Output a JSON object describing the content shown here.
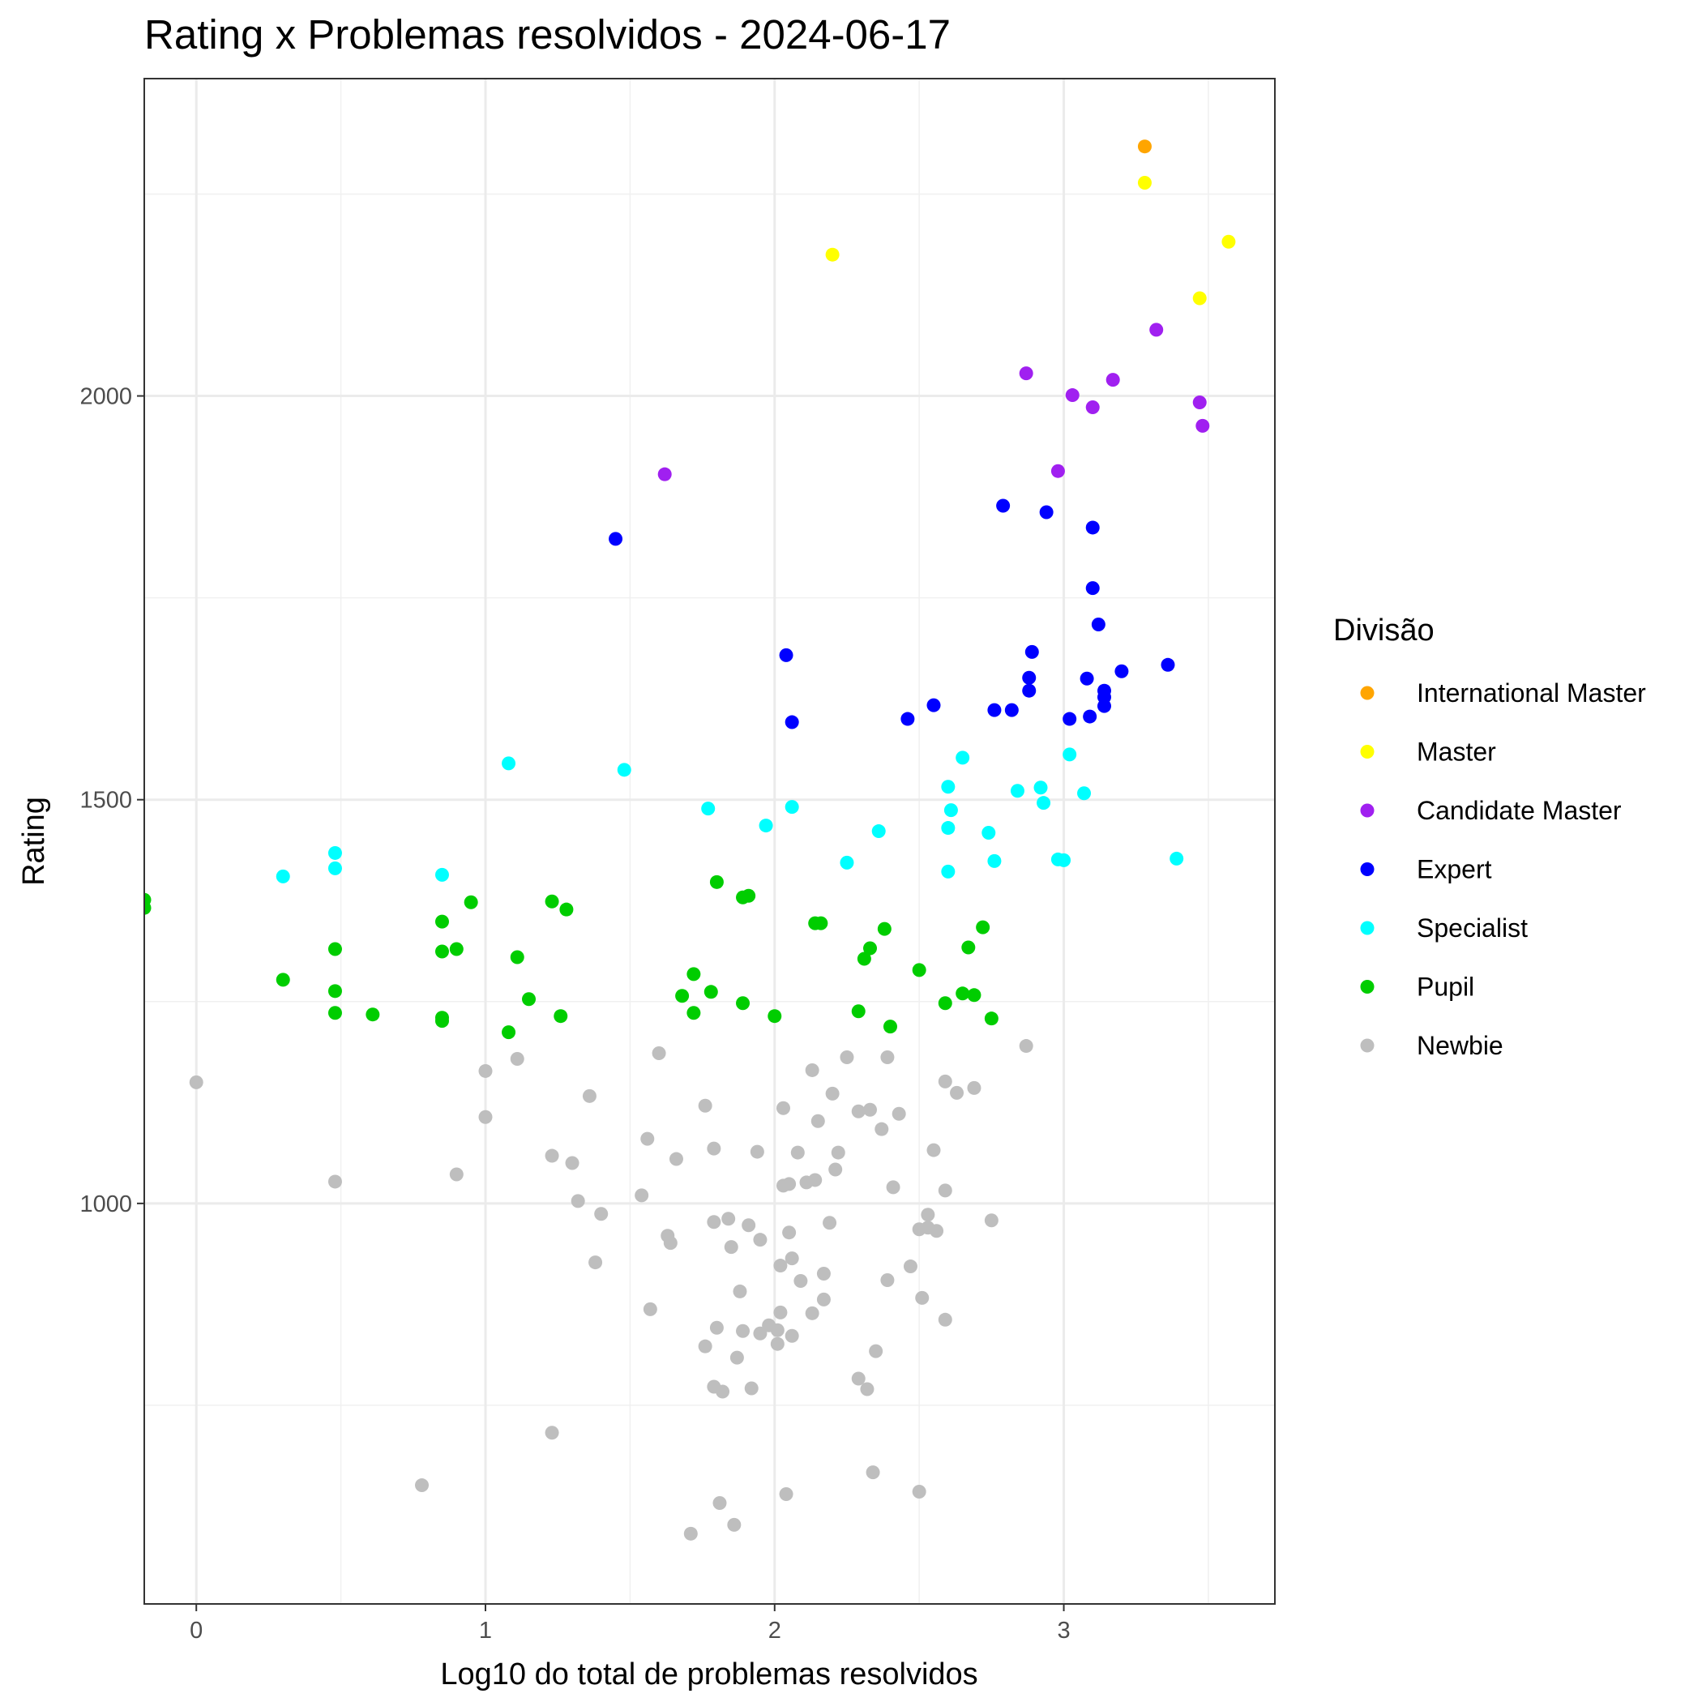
{
  "chart_data": {
    "type": "scatter",
    "title": "Rating x Problemas resolvidos - 2024-06-17",
    "xlabel": "Log10 do total de problemas resolvidos",
    "ylabel": "Rating",
    "xlim": [
      -0.18,
      3.73
    ],
    "ylim": [
      504,
      2393
    ],
    "x_ticks": [
      0,
      1,
      2,
      3
    ],
    "x_tick_labels": [
      "0",
      "1",
      "2",
      "3"
    ],
    "y_ticks": [
      1000,
      1500,
      2000
    ],
    "y_tick_labels": [
      "1000",
      "1500",
      "2000"
    ],
    "grid": true,
    "legend_title": "Divisão",
    "legend_position": "right",
    "series": [
      {
        "name": "International Master",
        "color": "#FFA500",
        "points": [
          [
            3.28,
            2309
          ]
        ]
      },
      {
        "name": "Master",
        "color": "#FFFF00",
        "points": [
          [
            3.28,
            2264
          ],
          [
            2.2,
            2175
          ],
          [
            3.57,
            2191
          ],
          [
            3.47,
            2121
          ]
        ]
      },
      {
        "name": "Candidate Master",
        "color": "#A020F0",
        "points": [
          [
            3.32,
            2082
          ],
          [
            2.87,
            2028
          ],
          [
            3.17,
            2020
          ],
          [
            3.03,
            2001
          ],
          [
            3.1,
            1986
          ],
          [
            3.47,
            1992
          ],
          [
            3.48,
            1963
          ],
          [
            1.62,
            1903
          ],
          [
            2.98,
            1907
          ]
        ]
      },
      {
        "name": "Expert",
        "color": "#0000FF",
        "points": [
          [
            1.45,
            1823
          ],
          [
            2.79,
            1864
          ],
          [
            2.94,
            1856
          ],
          [
            3.1,
            1837
          ],
          [
            3.1,
            1762
          ],
          [
            3.12,
            1717
          ],
          [
            2.89,
            1683
          ],
          [
            2.04,
            1679
          ],
          [
            3.36,
            1667
          ],
          [
            3.2,
            1659
          ],
          [
            2.88,
            1651
          ],
          [
            3.08,
            1650
          ],
          [
            2.88,
            1635
          ],
          [
            3.14,
            1635
          ],
          [
            3.14,
            1627
          ],
          [
            2.55,
            1617
          ],
          [
            2.76,
            1611
          ],
          [
            2.82,
            1611
          ],
          [
            3.14,
            1616
          ],
          [
            2.46,
            1600
          ],
          [
            3.02,
            1600
          ],
          [
            3.09,
            1603
          ],
          [
            2.06,
            1596
          ]
        ]
      },
      {
        "name": "Specialist",
        "color": "#00FFFF",
        "points": [
          [
            1.08,
            1545
          ],
          [
            1.48,
            1537
          ],
          [
            2.65,
            1552
          ],
          [
            3.02,
            1556
          ],
          [
            2.6,
            1516
          ],
          [
            2.84,
            1511
          ],
          [
            2.92,
            1515
          ],
          [
            3.07,
            1508
          ],
          [
            2.93,
            1496
          ],
          [
            1.77,
            1489
          ],
          [
            2.06,
            1491
          ],
          [
            2.61,
            1487
          ],
          [
            1.97,
            1468
          ],
          [
            2.6,
            1465
          ],
          [
            2.36,
            1461
          ],
          [
            2.74,
            1459
          ],
          [
            0.48,
            1434
          ],
          [
            0.48,
            1415
          ],
          [
            0.3,
            1405
          ],
          [
            0.85,
            1407
          ],
          [
            2.25,
            1422
          ],
          [
            2.76,
            1424
          ],
          [
            2.98,
            1426
          ],
          [
            3.0,
            1425
          ],
          [
            3.39,
            1427
          ],
          [
            2.6,
            1411
          ]
        ]
      },
      {
        "name": "Pupil",
        "color": "#00CD00",
        "points": [
          [
            -0.18,
            1376
          ],
          [
            -0.18,
            1366
          ],
          [
            0.95,
            1373
          ],
          [
            1.23,
            1374
          ],
          [
            1.28,
            1364
          ],
          [
            1.8,
            1398
          ],
          [
            1.89,
            1379
          ],
          [
            1.91,
            1381
          ],
          [
            0.85,
            1349
          ],
          [
            2.14,
            1347
          ],
          [
            2.16,
            1347
          ],
          [
            2.38,
            1340
          ],
          [
            2.72,
            1342
          ],
          [
            0.48,
            1315
          ],
          [
            0.85,
            1312
          ],
          [
            0.9,
            1315
          ],
          [
            2.33,
            1316
          ],
          [
            2.67,
            1317
          ],
          [
            1.11,
            1305
          ],
          [
            2.31,
            1303
          ],
          [
            1.72,
            1284
          ],
          [
            2.5,
            1289
          ],
          [
            0.3,
            1277
          ],
          [
            0.48,
            1263
          ],
          [
            1.78,
            1262
          ],
          [
            1.68,
            1257
          ],
          [
            2.65,
            1260
          ],
          [
            2.69,
            1258
          ],
          [
            1.15,
            1253
          ],
          [
            1.89,
            1248
          ],
          [
            2.59,
            1248
          ],
          [
            0.48,
            1236
          ],
          [
            0.61,
            1234
          ],
          [
            1.26,
            1232
          ],
          [
            1.72,
            1236
          ],
          [
            2.0,
            1232
          ],
          [
            2.29,
            1238
          ],
          [
            2.75,
            1229
          ],
          [
            0.85,
            1230
          ],
          [
            0.85,
            1226
          ],
          [
            2.4,
            1219
          ],
          [
            1.08,
            1212
          ]
        ]
      },
      {
        "name": "Newbie",
        "color": "#BEBEBE",
        "points": [
          [
            0.0,
            1150
          ],
          [
            0.48,
            1027
          ],
          [
            0.78,
            651
          ],
          [
            0.9,
            1036
          ],
          [
            1.0,
            1164
          ],
          [
            1.0,
            1107
          ],
          [
            1.11,
            1179
          ],
          [
            1.23,
            1059
          ],
          [
            1.23,
            716
          ],
          [
            1.3,
            1050
          ],
          [
            1.32,
            1003
          ],
          [
            1.36,
            1133
          ],
          [
            1.38,
            927
          ],
          [
            1.4,
            987
          ],
          [
            1.54,
            1010
          ],
          [
            1.56,
            1080
          ],
          [
            1.57,
            869
          ],
          [
            1.6,
            1186
          ],
          [
            1.63,
            960
          ],
          [
            1.64,
            951
          ],
          [
            1.66,
            1055
          ],
          [
            1.71,
            591
          ],
          [
            1.76,
            1121
          ],
          [
            1.76,
            823
          ],
          [
            1.79,
            1068
          ],
          [
            1.79,
            977
          ],
          [
            1.8,
            846
          ],
          [
            1.79,
            773
          ],
          [
            1.81,
            629
          ],
          [
            1.82,
            767
          ],
          [
            1.84,
            981
          ],
          [
            1.85,
            946
          ],
          [
            1.86,
            602
          ],
          [
            1.87,
            809
          ],
          [
            1.88,
            891
          ],
          [
            1.89,
            842
          ],
          [
            1.91,
            973
          ],
          [
            1.92,
            771
          ],
          [
            1.94,
            1064
          ],
          [
            1.95,
            955
          ],
          [
            1.95,
            839
          ],
          [
            1.98,
            849
          ],
          [
            2.01,
            843
          ],
          [
            2.01,
            826
          ],
          [
            2.02,
            923
          ],
          [
            2.02,
            865
          ],
          [
            2.03,
            1118
          ],
          [
            2.03,
            1022
          ],
          [
            2.04,
            640
          ],
          [
            2.05,
            1024
          ],
          [
            2.05,
            964
          ],
          [
            2.06,
            836
          ],
          [
            2.06,
            932
          ],
          [
            2.08,
            1063
          ],
          [
            2.09,
            904
          ],
          [
            2.11,
            1026
          ],
          [
            2.13,
            1165
          ],
          [
            2.13,
            864
          ],
          [
            2.14,
            1029
          ],
          [
            2.15,
            1102
          ],
          [
            2.17,
            913
          ],
          [
            2.17,
            881
          ],
          [
            2.19,
            976
          ],
          [
            2.2,
            1136
          ],
          [
            2.21,
            1042
          ],
          [
            2.22,
            1063
          ],
          [
            2.25,
            1181
          ],
          [
            2.29,
            1114
          ],
          [
            2.29,
            783
          ],
          [
            2.32,
            770
          ],
          [
            2.33,
            1116
          ],
          [
            2.34,
            667
          ],
          [
            2.35,
            817
          ],
          [
            2.37,
            1092
          ],
          [
            2.39,
            1181
          ],
          [
            2.39,
            905
          ],
          [
            2.41,
            1020
          ],
          [
            2.43,
            1111
          ],
          [
            2.47,
            922
          ],
          [
            2.5,
            968
          ],
          [
            2.5,
            643
          ],
          [
            2.51,
            883
          ],
          [
            2.53,
            986
          ],
          [
            2.53,
            970
          ],
          [
            2.55,
            1066
          ],
          [
            2.56,
            966
          ],
          [
            2.59,
            1151
          ],
          [
            2.59,
            1016
          ],
          [
            2.59,
            856
          ],
          [
            2.63,
            1137
          ],
          [
            2.69,
            1143
          ],
          [
            2.75,
            979
          ],
          [
            2.87,
            1195
          ]
        ]
      }
    ]
  }
}
